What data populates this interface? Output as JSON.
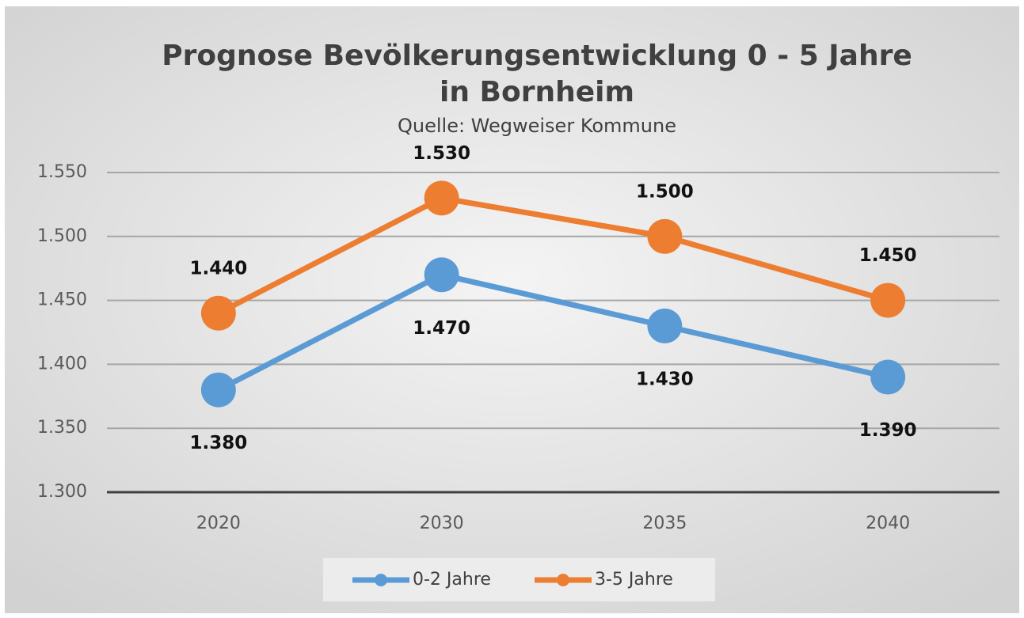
{
  "chart_data": {
    "type": "line",
    "title": [
      "Prognose Bevölkerungsentwicklung 0 - 5 Jahre",
      "in Bornheim"
    ],
    "subtitle": "Quelle: Wegweiser Kommune",
    "categories": [
      "2020",
      "2030",
      "2035",
      "2040"
    ],
    "series": [
      {
        "name": "0-2 Jahre",
        "color": "#5b9bd5",
        "values": [
          1380,
          1470,
          1430,
          1390
        ],
        "value_labels": [
          "1.380",
          "1.470",
          "1.430",
          "1.390"
        ],
        "label_position": "below"
      },
      {
        "name": "3-5 Jahre",
        "color": "#ed7d31",
        "values": [
          1440,
          1530,
          1500,
          1450
        ],
        "value_labels": [
          "1.440",
          "1.530",
          "1.500",
          "1.450"
        ],
        "label_position": "above"
      }
    ],
    "ylim": [
      1300,
      1550
    ],
    "yticks": [
      {
        "value": 1300,
        "label": "1.300"
      },
      {
        "value": 1350,
        "label": "1.350"
      },
      {
        "value": 1400,
        "label": "1.400"
      },
      {
        "value": 1450,
        "label": "1.450"
      },
      {
        "value": 1500,
        "label": "1.500"
      },
      {
        "value": 1550,
        "label": "1.550"
      }
    ],
    "grid": true,
    "legend": "bottom"
  }
}
